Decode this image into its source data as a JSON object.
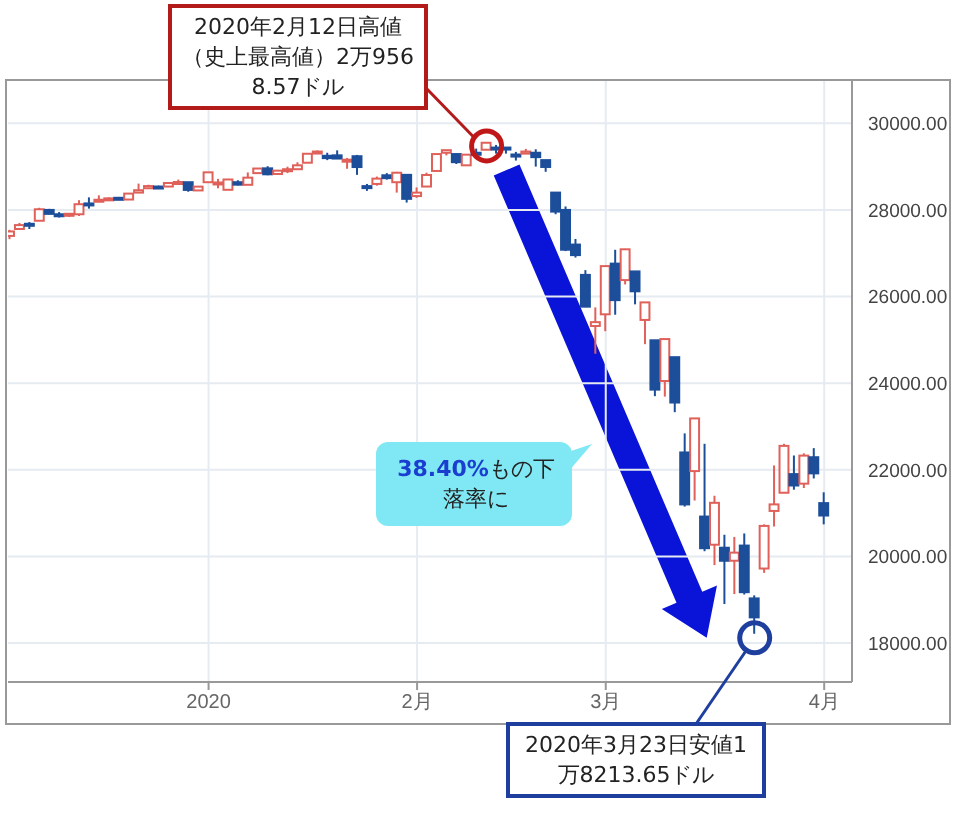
{
  "chart_data": {
    "type": "candlestick",
    "categories": [
      null,
      null,
      null,
      null,
      null,
      null,
      null,
      null,
      null,
      null,
      null,
      null,
      null,
      null,
      null,
      null,
      null,
      null,
      null,
      null,
      "2020",
      null,
      null,
      null,
      null,
      null,
      null,
      null,
      null,
      null,
      null,
      null,
      null,
      null,
      null,
      null,
      null,
      null,
      null,
      null,
      null,
      "2月",
      null,
      null,
      null,
      null,
      null,
      null,
      null,
      null,
      null,
      null,
      null,
      null,
      null,
      null,
      null,
      null,
      null,
      null,
      "3月",
      null,
      null,
      null,
      null,
      null,
      null,
      null,
      null,
      null,
      null,
      null,
      null,
      null,
      null,
      null,
      null,
      null,
      null,
      null,
      null,
      null,
      "4月"
    ],
    "ohlc": [
      [
        27400,
        27540,
        27325,
        27503
      ],
      [
        27560,
        27700,
        27550,
        27650
      ],
      [
        27680,
        27720,
        27560,
        27677
      ],
      [
        27750,
        28050,
        27750,
        28015
      ],
      [
        28000,
        28025,
        27900,
        27909
      ],
      [
        27900,
        27950,
        27825,
        27881
      ],
      [
        27880,
        27925,
        27840,
        27911
      ],
      [
        27900,
        28225,
        27860,
        28132
      ],
      [
        28150,
        28290,
        28030,
        28135
      ],
      [
        28190,
        28337,
        28190,
        28235
      ],
      [
        28250,
        28290,
        28225,
        28267
      ],
      [
        28280,
        28300,
        28230,
        28239
      ],
      [
        28240,
        28380,
        28230,
        28377
      ],
      [
        28400,
        28608,
        28400,
        28455
      ],
      [
        28500,
        28582,
        28500,
        28551
      ],
      [
        28540,
        28560,
        28500,
        28515
      ],
      [
        28540,
        28625,
        28540,
        28621
      ],
      [
        28640,
        28701,
        28630,
        28645
      ],
      [
        28640,
        28640,
        28420,
        28462
      ],
      [
        28450,
        28547,
        28440,
        28538
      ],
      [
        28640,
        28872,
        28627,
        28868
      ],
      [
        28590,
        28716,
        28500,
        28634
      ],
      [
        28465,
        28709,
        28460,
        28703
      ],
      [
        28640,
        28685,
        28565,
        28583
      ],
      [
        28580,
        28866,
        28575,
        28745
      ],
      [
        28850,
        28959,
        28850,
        28956
      ],
      [
        28960,
        29010,
        28800,
        28823
      ],
      [
        28830,
        28907,
        28820,
        28907
      ],
      [
        28900,
        28998,
        28850,
        28940
      ],
      [
        28940,
        29100,
        28940,
        29030
      ],
      [
        29090,
        29300,
        29090,
        29297
      ],
      [
        29320,
        29374,
        29290,
        29348
      ],
      [
        29250,
        29320,
        29150,
        29196
      ],
      [
        29260,
        29375,
        29180,
        29186
      ],
      [
        29150,
        29200,
        28950,
        29160
      ],
      [
        29240,
        29270,
        28810,
        28990
      ],
      [
        28550,
        28600,
        28440,
        28535
      ],
      [
        28600,
        28770,
        28560,
        28723
      ],
      [
        28800,
        28850,
        28700,
        28734
      ],
      [
        28640,
        28880,
        28400,
        28859
      ],
      [
        28810,
        28820,
        28170,
        28256
      ],
      [
        28320,
        28520,
        28280,
        28399
      ],
      [
        28540,
        28860,
        28540,
        28807
      ],
      [
        28900,
        29290,
        28900,
        29290
      ],
      [
        29320,
        29380,
        29260,
        29380
      ],
      [
        29290,
        29300,
        29060,
        29103
      ],
      [
        29030,
        29276,
        29030,
        29276
      ],
      [
        29320,
        29416,
        29270,
        29276
      ],
      [
        29390,
        29568.57,
        29380,
        29551
      ],
      [
        29440,
        29500,
        29300,
        29423
      ],
      [
        29440,
        29440,
        29300,
        29398
      ],
      [
        29280,
        29340,
        29140,
        29232
      ],
      [
        29300,
        29410,
        29300,
        29348
      ],
      [
        29320,
        29400,
        29000,
        29219
      ],
      [
        29150,
        29150,
        28880,
        28992
      ],
      [
        28400,
        28400,
        27900,
        27961
      ],
      [
        28000,
        28080,
        27050,
        27081
      ],
      [
        27200,
        27330,
        26900,
        26957
      ],
      [
        26500,
        26610,
        25760,
        25766
      ],
      [
        25320,
        25750,
        24680,
        25409
      ],
      [
        25590,
        26710,
        25200,
        26703
      ],
      [
        26760,
        27080,
        25580,
        25917
      ],
      [
        26380,
        27100,
        26280,
        27091
      ],
      [
        26580,
        26590,
        25820,
        26121
      ],
      [
        25460,
        25870,
        24900,
        25865
      ],
      [
        24990,
        24990,
        23700,
        23851
      ],
      [
        24050,
        25020,
        23690,
        25018
      ],
      [
        24600,
        24600,
        23330,
        23553
      ],
      [
        22400,
        22840,
        21150,
        21200
      ],
      [
        21970,
        23190,
        21290,
        23186
      ],
      [
        20920,
        22600,
        20120,
        20189
      ],
      [
        20270,
        21400,
        19800,
        21237
      ],
      [
        20200,
        20500,
        18900,
        19899
      ],
      [
        19900,
        20450,
        19130,
        20087
      ],
      [
        20250,
        20530,
        19120,
        19174
      ],
      [
        19030,
        19100,
        18213.65,
        18592
      ],
      [
        19720,
        20740,
        19620,
        20704
      ],
      [
        21050,
        22100,
        20690,
        21201
      ],
      [
        21470,
        22600,
        21460,
        22552
      ],
      [
        21900,
        22330,
        21540,
        21637
      ],
      [
        21680,
        22380,
        21580,
        22327
      ],
      [
        22290,
        22500,
        21800,
        21917
      ],
      [
        21230,
        21480,
        20740,
        20944
      ]
    ],
    "colors": [
      "#e0605a",
      "#e0605a",
      "#1c4e9a",
      "#e0605a",
      "#1c4e9a",
      "#1c4e9a",
      "#e0605a",
      "#e0605a",
      "#1c4e9a",
      "#e0605a",
      "#e0605a",
      "#1c4e9a",
      "#e0605a",
      "#e0605a",
      "#e0605a",
      "#1c4e9a",
      "#e0605a",
      "#e0605a",
      "#1c4e9a",
      "#e0605a",
      "#e0605a",
      "#e0605a",
      "#e0605a",
      "#1c4e9a",
      "#e0605a",
      "#e0605a",
      "#1c4e9a",
      "#e0605a",
      "#e0605a",
      "#e0605a",
      "#e0605a",
      "#e0605a",
      "#1c4e9a",
      "#1c4e9a",
      "#e0605a",
      "#1c4e9a",
      "#1c4e9a",
      "#e0605a",
      "#1c4e9a",
      "#e0605a",
      "#1c4e9a",
      "#e0605a",
      "#e0605a",
      "#e0605a",
      "#e0605a",
      "#1c4e9a",
      "#e0605a",
      "#1c4e9a",
      "#e0605a",
      "#1c4e9a",
      "#1c4e9a",
      "#1c4e9a",
      "#e0605a",
      "#1c4e9a",
      "#1c4e9a",
      "#1c4e9a",
      "#1c4e9a",
      "#1c4e9a",
      "#1c4e9a",
      "#e0605a",
      "#e0605a",
      "#1c4e9a",
      "#e0605a",
      "#1c4e9a",
      "#e0605a",
      "#1c4e9a",
      "#e0605a",
      "#1c4e9a",
      "#1c4e9a",
      "#e0605a",
      "#1c4e9a",
      "#e0605a",
      "#1c4e9a",
      "#e0605a",
      "#1c4e9a",
      "#1c4e9a",
      "#e0605a",
      "#e0605a",
      "#e0605a",
      "#1c4e9a",
      "#e0605a",
      "#1c4e9a",
      "#1c4e9a"
    ],
    "ylim": [
      17100,
      31000
    ],
    "yticks": [
      {
        "value": 18000,
        "label": "18000.00"
      },
      {
        "value": 20000,
        "label": "20000.00"
      },
      {
        "value": 22000,
        "label": "22000.00"
      },
      {
        "value": 24000,
        "label": "24000.00"
      },
      {
        "value": 26000,
        "label": "26000.00"
      },
      {
        "value": 28000,
        "label": "28000.00"
      },
      {
        "value": 30000,
        "label": "30000.00"
      }
    ],
    "grid": true,
    "annotations": [
      "2020年2月12日高値（史上最高値）2万9568.57ドル",
      "2020年3月23日安値1万8213.65ドル",
      "38.40%もの下落率に"
    ]
  }
}
